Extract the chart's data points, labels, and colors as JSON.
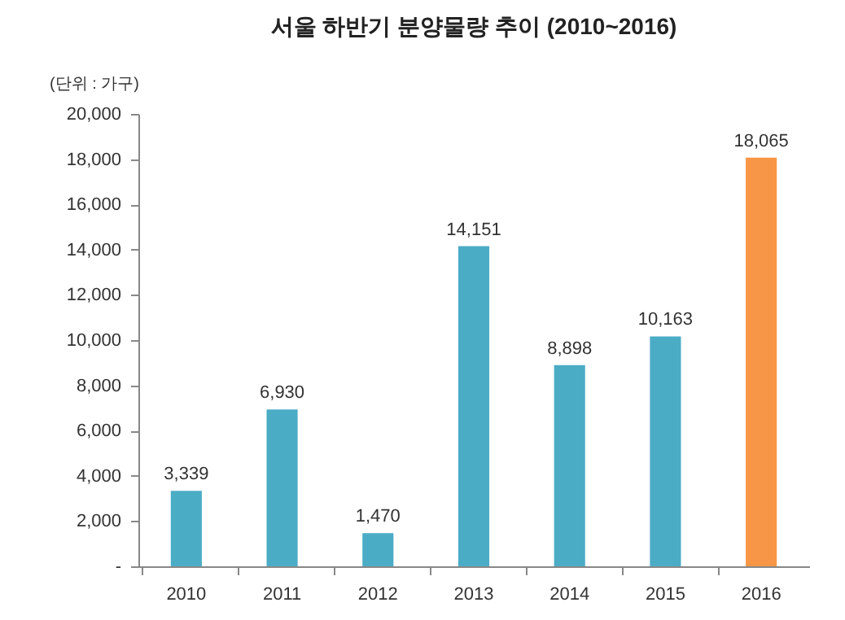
{
  "chart_data": {
    "type": "bar",
    "title": "서울 하반기 분양물량 추이 (2010~2016)",
    "ylabel": "(단위 : 가구)",
    "categories": [
      "2010",
      "2011",
      "2012",
      "2013",
      "2014",
      "2015",
      "2016"
    ],
    "values": [
      3339,
      6930,
      1470,
      14151,
      8898,
      10163,
      18065
    ],
    "value_labels": [
      "3,339",
      "6,930",
      "1,470",
      "14,151",
      "8,898",
      "10,163",
      "18,065"
    ],
    "colors": [
      "#4bacc6",
      "#4bacc6",
      "#4bacc6",
      "#4bacc6",
      "#4bacc6",
      "#4bacc6",
      "#f79646"
    ],
    "ylim": [
      0,
      20000
    ],
    "yticks": [
      {
        "value": 0,
        "label": "-"
      },
      {
        "value": 2000,
        "label": "2,000"
      },
      {
        "value": 4000,
        "label": "4,000"
      },
      {
        "value": 6000,
        "label": "6,000"
      },
      {
        "value": 8000,
        "label": "8,000"
      },
      {
        "value": 10000,
        "label": "10,000"
      },
      {
        "value": 12000,
        "label": "12,000"
      },
      {
        "value": 14000,
        "label": "14,000"
      },
      {
        "value": 16000,
        "label": "16,000"
      },
      {
        "value": 18000,
        "label": "18,000"
      },
      {
        "value": 20000,
        "label": "20,000"
      }
    ],
    "grid": false
  }
}
